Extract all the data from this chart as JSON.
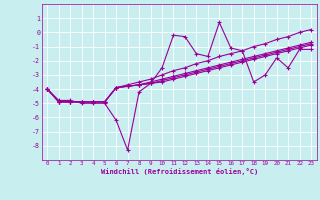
{
  "xlabel": "Windchill (Refroidissement éolien,°C)",
  "background_color": "#c8eef0",
  "line_color": "#990099",
  "grid_color": "#ffffff",
  "x_data": [
    0,
    1,
    2,
    3,
    4,
    5,
    6,
    7,
    8,
    9,
    10,
    11,
    12,
    13,
    14,
    15,
    16,
    17,
    18,
    19,
    20,
    21,
    22,
    23
  ],
  "line1": [
    -4.0,
    -4.8,
    -4.8,
    -5.0,
    -5.0,
    -5.0,
    -6.2,
    -8.3,
    -4.2,
    -3.6,
    -2.5,
    -0.2,
    -0.3,
    -1.5,
    -1.7,
    0.7,
    -1.1,
    -1.3,
    -3.5,
    -3.0,
    -1.8,
    -2.5,
    -1.2,
    -1.2
  ],
  "line2": [
    -4.0,
    -4.9,
    -4.9,
    -4.9,
    -4.9,
    -4.9,
    -3.9,
    -3.7,
    -3.5,
    -3.3,
    -3.0,
    -2.7,
    -2.5,
    -2.2,
    -2.0,
    -1.7,
    -1.5,
    -1.3,
    -1.0,
    -0.8,
    -0.5,
    -0.3,
    0.0,
    0.2
  ],
  "line3": [
    -4.0,
    -4.9,
    -4.9,
    -4.9,
    -4.9,
    -4.9,
    -3.9,
    -3.8,
    -3.7,
    -3.5,
    -3.3,
    -3.1,
    -2.9,
    -2.7,
    -2.5,
    -2.3,
    -2.1,
    -1.9,
    -1.7,
    -1.5,
    -1.3,
    -1.1,
    -0.9,
    -0.7
  ],
  "line4": [
    -4.0,
    -4.9,
    -4.9,
    -4.9,
    -4.9,
    -4.9,
    -3.9,
    -3.8,
    -3.7,
    -3.6,
    -3.4,
    -3.2,
    -3.0,
    -2.8,
    -2.6,
    -2.4,
    -2.2,
    -2.0,
    -1.8,
    -1.6,
    -1.4,
    -1.2,
    -1.0,
    -0.8
  ],
  "line5": [
    -4.0,
    -4.9,
    -4.9,
    -4.9,
    -4.9,
    -4.9,
    -3.9,
    -3.8,
    -3.7,
    -3.6,
    -3.5,
    -3.3,
    -3.1,
    -2.9,
    -2.7,
    -2.5,
    -2.3,
    -2.1,
    -1.9,
    -1.7,
    -1.5,
    -1.3,
    -1.1,
    -0.9
  ],
  "ylim": [
    -9,
    2
  ],
  "xlim": [
    -0.5,
    23.5
  ],
  "yticks": [
    1,
    0,
    -1,
    -2,
    -3,
    -4,
    -5,
    -6,
    -7,
    -8
  ],
  "xticks": [
    0,
    1,
    2,
    3,
    4,
    5,
    6,
    7,
    8,
    9,
    10,
    11,
    12,
    13,
    14,
    15,
    16,
    17,
    18,
    19,
    20,
    21,
    22,
    23
  ]
}
